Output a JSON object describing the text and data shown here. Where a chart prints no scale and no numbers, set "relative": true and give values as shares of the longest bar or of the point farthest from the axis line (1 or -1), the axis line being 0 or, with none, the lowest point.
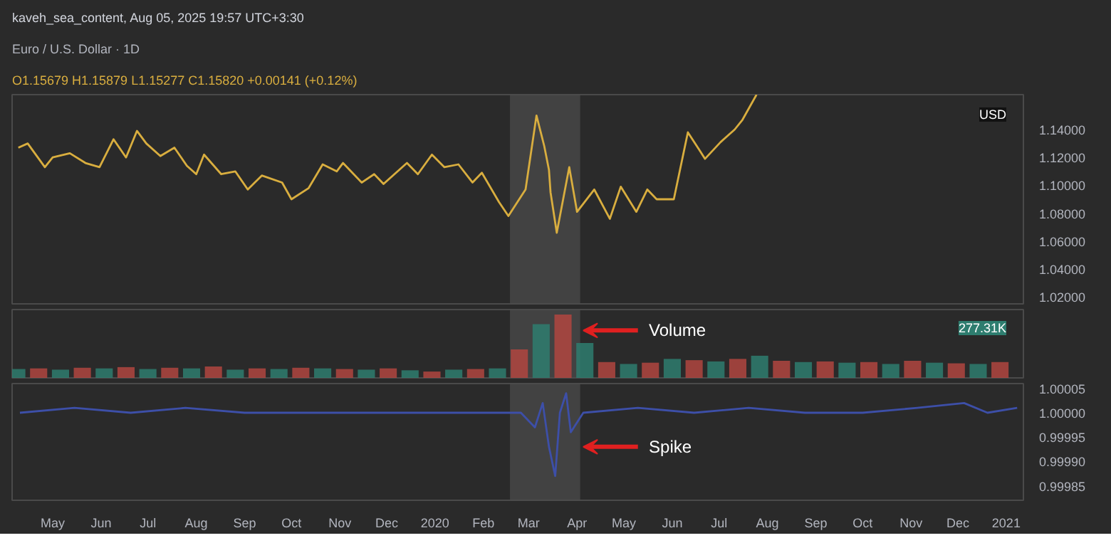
{
  "chart_data": [
    {
      "type": "line",
      "title": "Euro / U.S. Dollar · 1D",
      "subtitle": "O1.15679 H1.15879 L1.15277 C1.15820 +0.00141 (+0.12%)",
      "annotations": [
        "kaveh_sea_content, Aug 05, 2025 19:57 UTC+3:30",
        "USD"
      ],
      "xlim": [
        "2019-04-05",
        "2021-01-12"
      ],
      "ylim": [
        1.015,
        1.165
      ],
      "yticks": [
        {
          "value": 1.14,
          "label": "1.14000"
        },
        {
          "value": 1.12,
          "label": "1.12000"
        },
        {
          "value": 1.1,
          "label": "1.10000"
        },
        {
          "value": 1.08,
          "label": "1.08000"
        },
        {
          "value": 1.06,
          "label": "1.06000"
        },
        {
          "value": 1.04,
          "label": "1.04000"
        },
        {
          "value": 1.02,
          "label": "1.02000"
        }
      ],
      "tick_labels": "y",
      "grid": false,
      "bands": [
        {
          "axis": "x",
          "from": "2020-02-18",
          "to": "2020-04-03",
          "label": null,
          "color": "#4d4d4d"
        }
      ],
      "series": [
        {
          "color": "#d9ae3f",
          "x": [
            "2019-04-09",
            "2019-04-15",
            "2019-04-26",
            "2019-05-01",
            "2019-05-12",
            "2019-05-22",
            "2019-05-31",
            "2019-06-09",
            "2019-06-17",
            "2019-06-24",
            "2019-06-30",
            "2019-07-09",
            "2019-07-18",
            "2019-07-26",
            "2019-08-01",
            "2019-08-06",
            "2019-08-17",
            "2019-08-26",
            "2019-09-03",
            "2019-09-12",
            "2019-09-25",
            "2019-10-01",
            "2019-10-12",
            "2019-10-21",
            "2019-10-30",
            "2019-11-03",
            "2019-11-15",
            "2019-11-23",
            "2019-11-29",
            "2019-12-14",
            "2019-12-21",
            "2019-12-30",
            "2020-01-07",
            "2020-01-16",
            "2020-01-25",
            "2020-01-31",
            "2020-02-11",
            "2020-02-17",
            "2020-02-28",
            "2020-03-06",
            "2020-03-11",
            "2020-03-14",
            "2020-03-15",
            "2020-03-19",
            "2020-03-27",
            "2020-04-01",
            "2020-04-12",
            "2020-04-22",
            "2020-04-29",
            "2020-05-09",
            "2020-05-16",
            "2020-05-22",
            "2020-06-02",
            "2020-06-11",
            "2020-06-18",
            "2020-06-22",
            "2020-07-02",
            "2020-07-11",
            "2020-07-16",
            "2020-07-25"
          ],
          "values": [
            1.127,
            1.13,
            1.113,
            1.12,
            1.123,
            1.116,
            1.113,
            1.133,
            1.12,
            1.139,
            1.13,
            1.121,
            1.127,
            1.114,
            1.108,
            1.122,
            1.108,
            1.11,
            1.097,
            1.107,
            1.102,
            1.09,
            1.098,
            1.115,
            1.11,
            1.116,
            1.102,
            1.108,
            1.101,
            1.116,
            1.108,
            1.122,
            1.113,
            1.115,
            1.102,
            1.109,
            1.088,
            1.078,
            1.097,
            1.15,
            1.128,
            1.111,
            1.095,
            1.066,
            1.113,
            1.081,
            1.097,
            1.076,
            1.099,
            1.081,
            1.097,
            1.09,
            1.09,
            1.138,
            1.126,
            1.119,
            1.131,
            1.14,
            1.147,
            1.165
          ]
        }
      ]
    },
    {
      "type": "bar",
      "relative": true,
      "tick_labels": false,
      "annotations": [
        "277.31K",
        {
          "text": "Volume",
          "x": "2020-04-05",
          "y": 0.75
        }
      ],
      "xlim": [
        "2019-04-05",
        "2021-01-12"
      ],
      "bands": [
        {
          "axis": "x",
          "from": "2020-02-18",
          "to": "2020-04-03",
          "label": null,
          "color": "#4d4d4d"
        }
      ],
      "series": [
        {
          "x": [
            "2019-04-08",
            "2019-04-22",
            "2019-05-06",
            "2019-05-20",
            "2019-06-03",
            "2019-06-17",
            "2019-07-01",
            "2019-07-15",
            "2019-07-29",
            "2019-08-12",
            "2019-08-26",
            "2019-09-09",
            "2019-09-23",
            "2019-10-07",
            "2019-10-21",
            "2019-11-04",
            "2019-11-18",
            "2019-12-02",
            "2019-12-16",
            "2019-12-30",
            "2020-01-13",
            "2020-01-27",
            "2020-02-10",
            "2020-02-24",
            "2020-03-09",
            "2020-03-23",
            "2020-04-06",
            "2020-04-20",
            "2020-05-04",
            "2020-05-18",
            "2020-06-01",
            "2020-06-15",
            "2020-06-29",
            "2020-07-13",
            "2020-07-27",
            "2020-08-10",
            "2020-08-24",
            "2020-09-07",
            "2020-09-21",
            "2020-10-05",
            "2020-10-19",
            "2020-11-02",
            "2020-11-16",
            "2020-11-30",
            "2020-12-14",
            "2020-12-28"
          ],
          "values": [
            0.14,
            0.15,
            0.13,
            0.16,
            0.15,
            0.17,
            0.14,
            0.16,
            0.15,
            0.18,
            0.13,
            0.15,
            0.14,
            0.16,
            0.15,
            0.14,
            0.13,
            0.15,
            0.12,
            0.1,
            0.13,
            0.14,
            0.15,
            0.45,
            0.85,
            1.0,
            0.55,
            0.25,
            0.22,
            0.24,
            0.3,
            0.28,
            0.26,
            0.3,
            0.35,
            0.27,
            0.25,
            0.26,
            0.24,
            0.25,
            0.22,
            0.27,
            0.24,
            0.23,
            0.22,
            0.25
          ],
          "colors": [
            "#2e7d6f",
            "#b0453f",
            "#2e7d6f",
            "#b0453f",
            "#2e7d6f",
            "#b0453f",
            "#2e7d6f",
            "#b0453f",
            "#2e7d6f",
            "#b0453f",
            "#2e7d6f",
            "#b0453f",
            "#2e7d6f",
            "#b0453f",
            "#2e7d6f",
            "#b0453f",
            "#2e7d6f",
            "#b0453f",
            "#2e7d6f",
            "#b0453f",
            "#2e7d6f",
            "#b0453f",
            "#2e7d6f",
            "#b0453f",
            "#2e7d6f",
            "#b0453f",
            "#2e7d6f",
            "#b0453f",
            "#2e7d6f",
            "#b0453f",
            "#2e7d6f",
            "#b0453f",
            "#2e7d6f",
            "#b0453f",
            "#2e7d6f",
            "#b0453f",
            "#2e7d6f",
            "#b0453f",
            "#2e7d6f",
            "#b0453f",
            "#2e7d6f",
            "#b0453f",
            "#2e7d6f",
            "#b0453f",
            "#2e7d6f",
            "#b0453f"
          ]
        }
      ]
    },
    {
      "type": "line",
      "annotations": [
        {
          "text": "Spike",
          "x": "2020-04-05",
          "y": 0.99993
        }
      ],
      "xlim": [
        "2019-04-05",
        "2021-01-12"
      ],
      "xticks": [
        {
          "value": "2019-05-01",
          "label": "May"
        },
        {
          "value": "2019-06-01",
          "label": "Jun"
        },
        {
          "value": "2019-07-01",
          "label": "Jul"
        },
        {
          "value": "2019-08-01",
          "label": "Aug"
        },
        {
          "value": "2019-09-01",
          "label": "Sep"
        },
        {
          "value": "2019-10-01",
          "label": "Oct"
        },
        {
          "value": "2019-11-01",
          "label": "Nov"
        },
        {
          "value": "2019-12-01",
          "label": "Dec"
        },
        {
          "value": "2020-01-01",
          "label": "2020"
        },
        {
          "value": "2020-02-01",
          "label": "Feb"
        },
        {
          "value": "2020-03-01",
          "label": "Mar"
        },
        {
          "value": "2020-04-01",
          "label": "Apr"
        },
        {
          "value": "2020-05-01",
          "label": "May"
        },
        {
          "value": "2020-06-01",
          "label": "Jun"
        },
        {
          "value": "2020-07-01",
          "label": "Jul"
        },
        {
          "value": "2020-08-01",
          "label": "Aug"
        },
        {
          "value": "2020-09-01",
          "label": "Sep"
        },
        {
          "value": "2020-10-01",
          "label": "Oct"
        },
        {
          "value": "2020-11-01",
          "label": "Nov"
        },
        {
          "value": "2020-12-01",
          "label": "Dec"
        },
        {
          "value": "2021-01-01",
          "label": "2021"
        }
      ],
      "ylim": [
        0.99982,
        1.00006
      ],
      "yticks": [
        {
          "value": 1.00005,
          "label": "1.00005"
        },
        {
          "value": 1.0,
          "label": "1.00000"
        },
        {
          "value": 0.99995,
          "label": "0.99995"
        },
        {
          "value": 0.9999,
          "label": "0.99990"
        },
        {
          "value": 0.99985,
          "label": "0.99985"
        }
      ],
      "grid": false,
      "bands": [
        {
          "axis": "x",
          "from": "2020-02-18",
          "to": "2020-04-03",
          "label": null,
          "color": "#4d4d4d"
        }
      ],
      "series": [
        {
          "color": "#3d4fa8",
          "x": [
            "2019-04-10",
            "2019-05-15",
            "2019-06-20",
            "2019-07-25",
            "2019-09-01",
            "2019-10-10",
            "2019-11-15",
            "2019-12-20",
            "2020-02-01",
            "2020-02-25",
            "2020-03-05",
            "2020-03-10",
            "2020-03-14",
            "2020-03-18",
            "2020-03-21",
            "2020-03-25",
            "2020-03-28",
            "2020-04-05",
            "2020-05-10",
            "2020-06-15",
            "2020-07-20",
            "2020-08-25",
            "2020-10-01",
            "2020-11-05",
            "2020-12-05",
            "2020-12-20",
            "2021-01-08"
          ],
          "values": [
            1.0,
            1.00001,
            1.0,
            1.00001,
            1.0,
            1.0,
            1.0,
            1.0,
            1.0,
            1.0,
            0.99997,
            1.00002,
            0.99993,
            0.99987,
            1.0,
            1.00004,
            0.99996,
            1.0,
            1.00001,
            1.0,
            1.00001,
            1.0,
            1.0,
            1.00001,
            1.00002,
            1.0,
            1.00001
          ]
        }
      ]
    }
  ]
}
